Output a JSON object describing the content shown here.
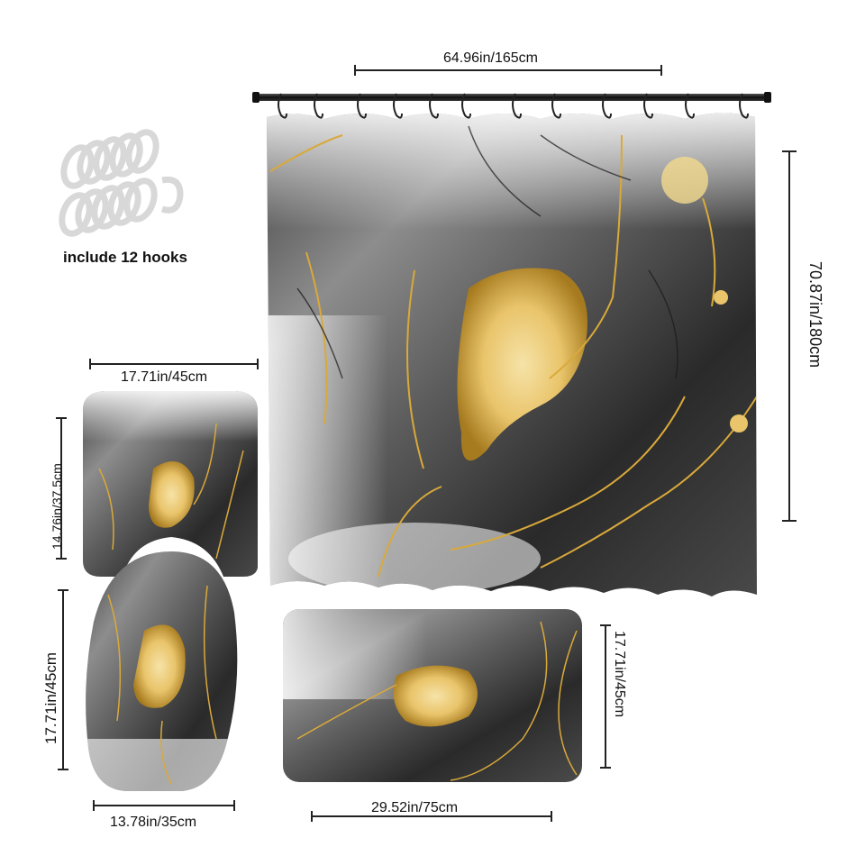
{
  "hooks": {
    "caption": "include 12 hooks",
    "count": 12
  },
  "dimensions": {
    "curtain_width": "64.96in/165cm",
    "curtain_height": "70.87in/180cm",
    "lid_cover_width": "17.71in/45cm",
    "lid_cover_height": "14.76in/37.5cm",
    "contour_mat_height": "17.71in/45cm",
    "contour_mat_width": "13.78in/35cm",
    "bath_mat_width": "29.52in/75cm",
    "bath_mat_height": "17.71in/45cm"
  },
  "colors": {
    "marble_dark": "#2b2b2b",
    "marble_mid": "#7a7a7a",
    "marble_light": "#f4f4f4",
    "gold": "#d9a93a",
    "gold_light": "#f3d98c",
    "rod": "#222222"
  }
}
